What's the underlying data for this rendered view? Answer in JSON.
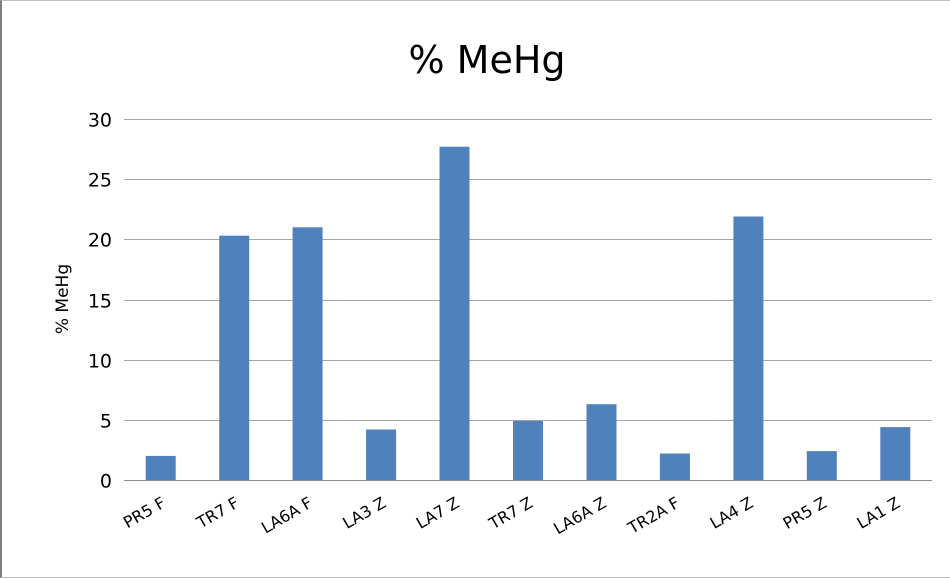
{
  "chart_data": {
    "type": "bar",
    "title": "% MeHg",
    "xlabel": "",
    "ylabel": "% MeHg",
    "ylim": [
      0,
      30
    ],
    "yticks": [
      0,
      5,
      10,
      15,
      20,
      25,
      30
    ],
    "grid": true,
    "legend": "none",
    "categories": [
      "PR5 F",
      "TR7 F",
      "LA6A F",
      "LA3 Z",
      "LA7 Z",
      "TR7 Z",
      "LA6A Z",
      "TR2A F",
      "LA4 Z",
      "PR5 Z",
      "LA1 Z"
    ],
    "values": [
      2.0,
      20.3,
      21.0,
      4.2,
      27.7,
      4.9,
      6.3,
      2.2,
      21.9,
      2.4,
      4.4
    ],
    "bar_color": "#4f81bd"
  }
}
